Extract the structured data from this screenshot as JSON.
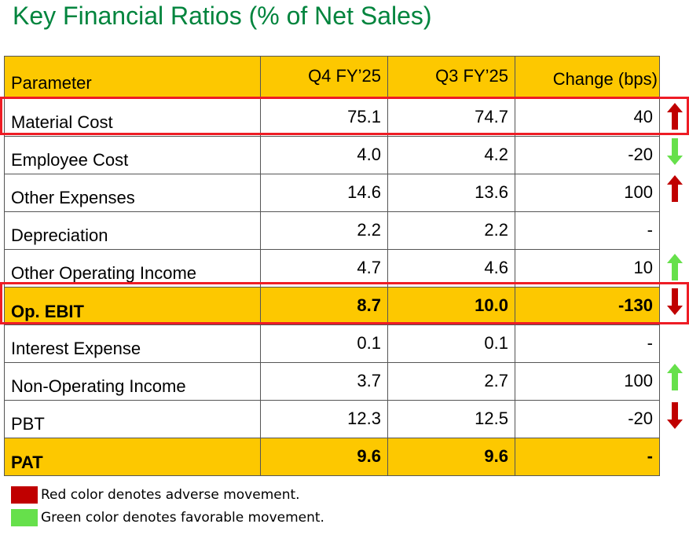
{
  "title": "Key Financial Ratios (% of Net Sales)",
  "colors": {
    "title": "#00843d",
    "header_bg": "#fdc800",
    "highlight_border": "#ee1c25",
    "adverse": "#c00000",
    "favorable": "#66e04b"
  },
  "table": {
    "headers": [
      "Parameter",
      "Q4 FY’25",
      "Q3 FY’25",
      "Change (bps)"
    ],
    "rows": [
      {
        "parameter": "Material Cost",
        "q4": "75.1",
        "q3": "74.7",
        "change": "40",
        "arrow": "red-up-arrow-icon"
      },
      {
        "parameter": "Employee Cost",
        "q4": "4.0",
        "q3": "4.2",
        "change": "-20",
        "arrow": "green-down-arrow-icon"
      },
      {
        "parameter": "Other Expenses",
        "q4": "14.6",
        "q3": "13.6",
        "change": "100",
        "arrow": "red-up-arrow-icon"
      },
      {
        "parameter": "Depreciation",
        "q4": "2.2",
        "q3": "2.2",
        "change": "-",
        "arrow": ""
      },
      {
        "parameter": "Other Operating Income",
        "q4": "4.7",
        "q3": "4.6",
        "change": "10",
        "arrow": "green-up-arrow-icon"
      },
      {
        "parameter": "Op. EBIT",
        "q4": "8.7",
        "q3": "10.0",
        "change": "-130",
        "arrow": "red-down-arrow-icon"
      },
      {
        "parameter": "Interest Expense",
        "q4": "0.1",
        "q3": "0.1",
        "change": "-",
        "arrow": ""
      },
      {
        "parameter": "Non-Operating Income",
        "q4": "3.7",
        "q3": "2.7",
        "change": "100",
        "arrow": "green-up-arrow-icon"
      },
      {
        "parameter": "PBT",
        "q4": "12.3",
        "q3": "12.5",
        "change": "-20",
        "arrow": "red-down-arrow-icon"
      },
      {
        "parameter": "PAT",
        "q4": "9.6",
        "q3": "9.6",
        "change": "-",
        "arrow": ""
      }
    ]
  },
  "legend": {
    "adverse": "Red color denotes adverse movement.",
    "favorable": "Green color denotes favorable movement."
  }
}
